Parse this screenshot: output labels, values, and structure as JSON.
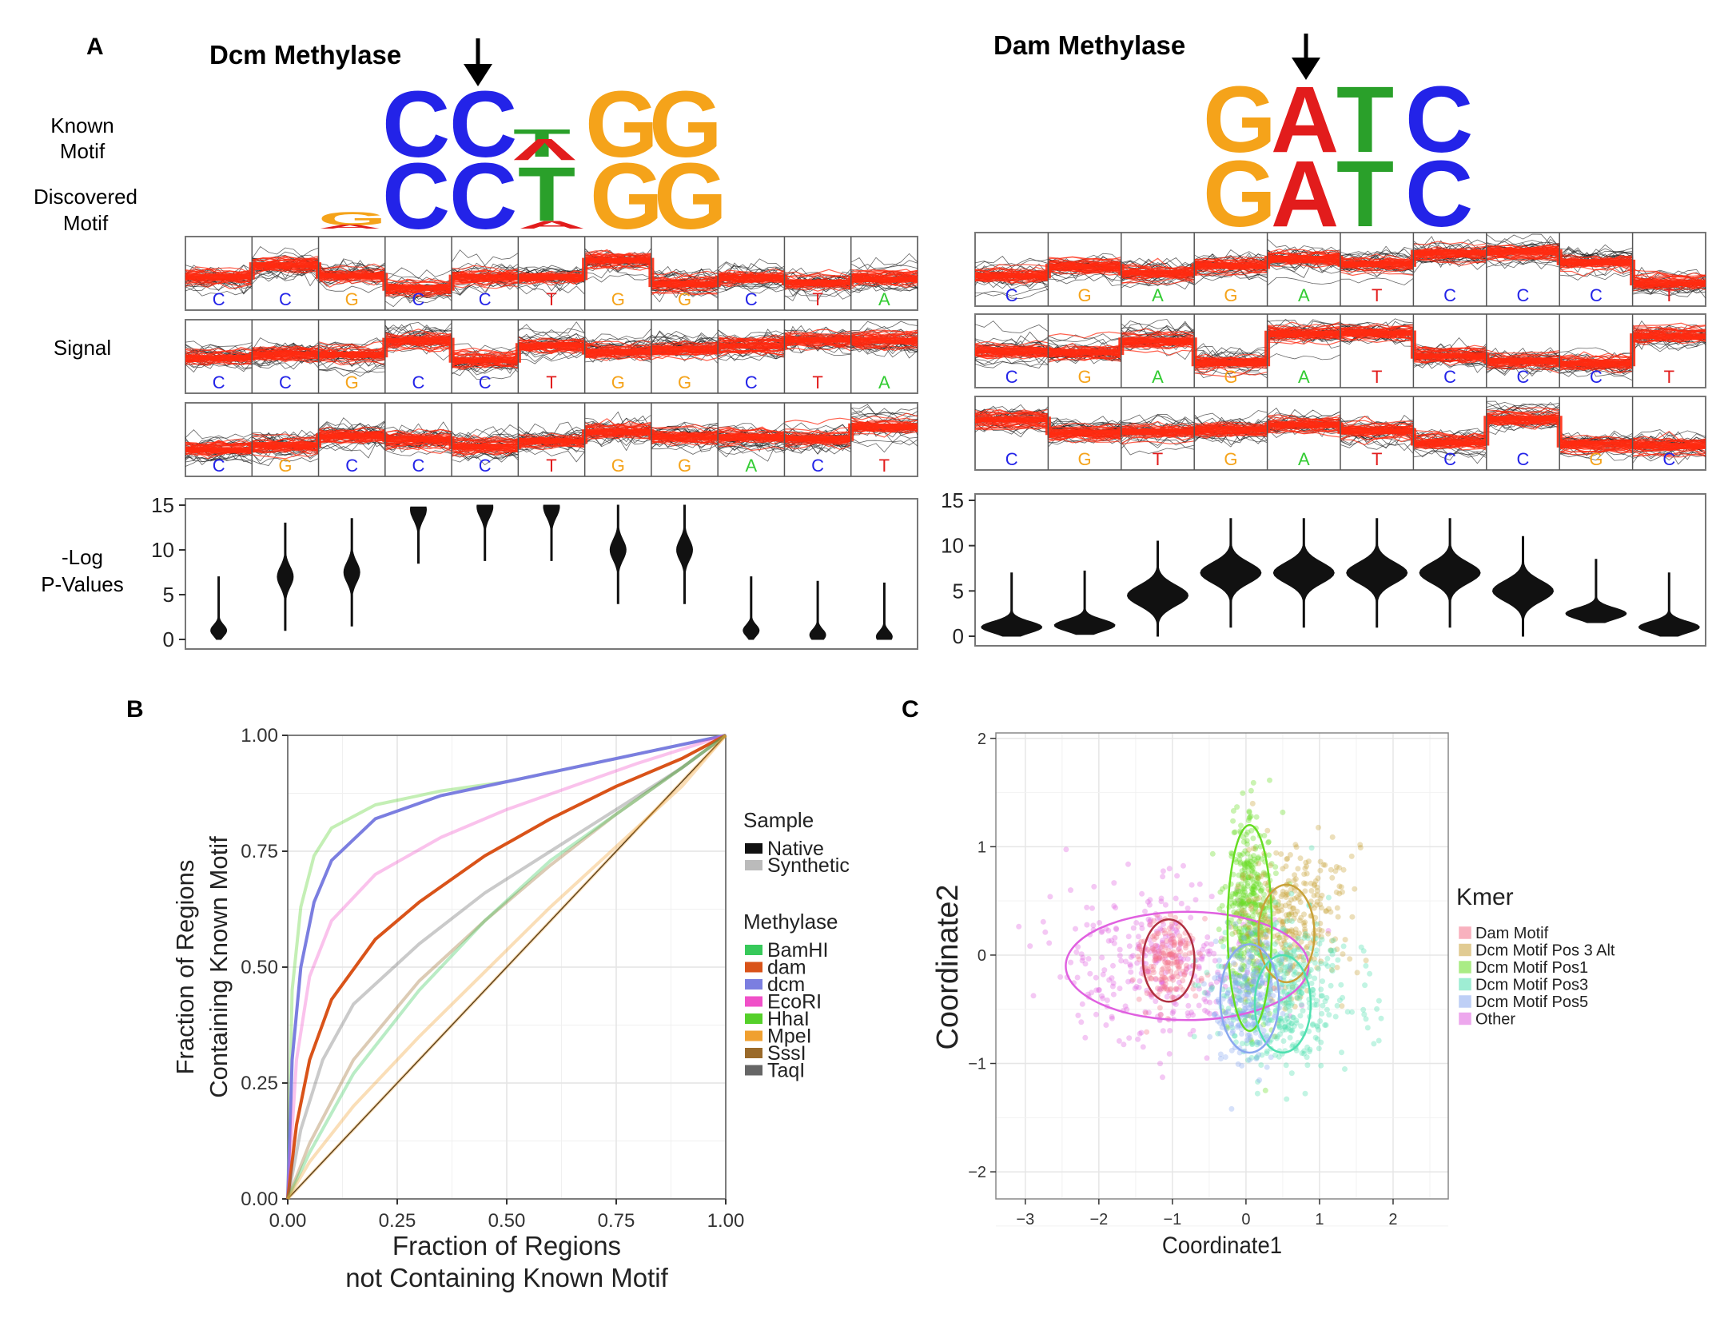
{
  "panel_a": {
    "panel_label": "A",
    "row_labels": {
      "known_motif": [
        "Known",
        "Motif"
      ],
      "discovered_motif": [
        "Discovered",
        "Motif"
      ],
      "signal": "Signal",
      "pvalues": [
        "-Log",
        "P-Values"
      ]
    },
    "dcm": {
      "title": "Dcm Methylase",
      "known_motif": [
        "C",
        "C",
        "A/T",
        "G",
        "G"
      ],
      "discovered_motif": [
        "G/A",
        "C",
        "C",
        "T/A",
        "G",
        "G"
      ],
      "signal_tracks": [
        [
          "C",
          "C",
          "G",
          "C",
          "C",
          "T",
          "G",
          "G",
          "C",
          "T",
          "A"
        ],
        [
          "C",
          "C",
          "G",
          "C",
          "C",
          "T",
          "G",
          "G",
          "C",
          "T",
          "A"
        ],
        [
          "C",
          "G",
          "C",
          "C",
          "C",
          "T",
          "G",
          "G",
          "A",
          "C",
          "T"
        ]
      ],
      "pvalue_axis": {
        "ticks": [
          "15",
          "10",
          "5",
          "0"
        ]
      },
      "violin_centers": [
        1,
        7,
        7.5,
        14.5,
        14.8,
        14.8,
        10,
        10,
        1,
        0.5,
        0.3
      ]
    },
    "dam": {
      "title": "Dam Methylase",
      "known_motif": [
        "G",
        "A",
        "T",
        "C"
      ],
      "discovered_motif": [
        "G",
        "A",
        "T",
        "C"
      ],
      "signal_tracks": [
        [
          "C",
          "G",
          "A",
          "G",
          "A",
          "T",
          "C",
          "C",
          "C",
          "T"
        ],
        [
          "C",
          "G",
          "A",
          "G",
          "A",
          "T",
          "C",
          "C",
          "C",
          "T"
        ],
        [
          "C",
          "G",
          "T",
          "G",
          "A",
          "T",
          "C",
          "C",
          "G",
          "C"
        ]
      ],
      "pvalue_axis": {
        "ticks": [
          "15",
          "10",
          "5",
          "0"
        ]
      },
      "violin_centers": [
        1,
        1.2,
        4.5,
        7,
        7,
        7,
        7,
        5,
        2.5,
        1
      ]
    }
  },
  "panel_b": {
    "panel_label": "B",
    "chart_data": {
      "type": "line",
      "xlabel": [
        "Fraction of Regions",
        "not Containing Known Motif"
      ],
      "ylabel": [
        "Fraction of Regions",
        "Containing Known Motif"
      ],
      "xlim": [
        0,
        1
      ],
      "ylim": [
        0,
        1
      ],
      "x_ticks": [
        "0.00",
        "0.25",
        "0.50",
        "0.75",
        "1.00"
      ],
      "y_ticks": [
        "0.00",
        "0.25",
        "0.50",
        "0.75",
        "1.00"
      ],
      "grid": true,
      "legend_sample_title": "Sample",
      "legend_sample": [
        {
          "label": "Native",
          "color": "#111111"
        },
        {
          "label": "Synthetic",
          "color": "#bbbbbb"
        }
      ],
      "legend_methylase_title": "Methylase",
      "legend_methylase": [
        {
          "label": "BamHI",
          "color": "#37c95a"
        },
        {
          "label": "dam",
          "color": "#d95319"
        },
        {
          "label": "dcm",
          "color": "#7b7ee0"
        },
        {
          "label": "EcoRI",
          "color": "#f050c8"
        },
        {
          "label": "HhaI",
          "color": "#55d02a"
        },
        {
          "label": "MpeI",
          "color": "#f0a030"
        },
        {
          "label": "SssI",
          "color": "#9a6a2a"
        },
        {
          "label": "TaqI",
          "color": "#666666"
        }
      ],
      "series": [
        {
          "methylase": "HhaI",
          "sample": "Synthetic",
          "x": [
            0,
            0.01,
            0.03,
            0.06,
            0.1,
            0.2,
            0.35,
            0.5,
            0.65,
            0.8,
            1
          ],
          "y": [
            0,
            0.45,
            0.63,
            0.74,
            0.8,
            0.85,
            0.88,
            0.9,
            0.93,
            0.96,
            1
          ]
        },
        {
          "methylase": "dcm",
          "sample": "Native",
          "x": [
            0,
            0.01,
            0.03,
            0.06,
            0.1,
            0.2,
            0.35,
            0.5,
            0.65,
            0.8,
            1
          ],
          "y": [
            0,
            0.3,
            0.5,
            0.64,
            0.73,
            0.82,
            0.87,
            0.9,
            0.93,
            0.96,
            1
          ]
        },
        {
          "methylase": "EcoRI",
          "sample": "Synthetic",
          "x": [
            0,
            0.02,
            0.05,
            0.1,
            0.2,
            0.35,
            0.5,
            0.65,
            0.8,
            1
          ],
          "y": [
            0,
            0.3,
            0.48,
            0.6,
            0.7,
            0.78,
            0.84,
            0.89,
            0.94,
            1
          ]
        },
        {
          "methylase": "dam",
          "sample": "Native",
          "x": [
            0,
            0.02,
            0.05,
            0.1,
            0.2,
            0.3,
            0.45,
            0.6,
            0.75,
            0.9,
            1
          ],
          "y": [
            0,
            0.16,
            0.3,
            0.43,
            0.56,
            0.64,
            0.74,
            0.82,
            0.89,
            0.95,
            1
          ]
        },
        {
          "methylase": "TaqI",
          "sample": "Synthetic",
          "x": [
            0,
            0.03,
            0.08,
            0.15,
            0.3,
            0.45,
            0.6,
            0.75,
            0.9,
            1
          ],
          "y": [
            0,
            0.15,
            0.3,
            0.42,
            0.55,
            0.66,
            0.75,
            0.84,
            0.93,
            1
          ]
        },
        {
          "methylase": "SssI",
          "sample": "Synthetic",
          "x": [
            0,
            0.05,
            0.15,
            0.3,
            0.45,
            0.6,
            0.75,
            0.9,
            1
          ],
          "y": [
            0,
            0.12,
            0.3,
            0.47,
            0.6,
            0.72,
            0.83,
            0.93,
            1
          ]
        },
        {
          "methylase": "BamHI",
          "sample": "Synthetic",
          "x": [
            0,
            0.05,
            0.15,
            0.3,
            0.45,
            0.6,
            0.75,
            0.9,
            1
          ],
          "y": [
            0,
            0.1,
            0.27,
            0.45,
            0.6,
            0.73,
            0.83,
            0.93,
            1
          ]
        },
        {
          "methylase": "MpeI",
          "sample": "Synthetic",
          "x": [
            0,
            0.05,
            0.15,
            0.3,
            0.45,
            0.6,
            0.75,
            0.9,
            1
          ],
          "y": [
            0,
            0.08,
            0.2,
            0.35,
            0.49,
            0.63,
            0.76,
            0.89,
            1
          ]
        },
        {
          "methylase": "MpeI",
          "sample": "Synthetic",
          "x": [
            0,
            0.1,
            0.25,
            0.4,
            0.55,
            0.7,
            0.85,
            1
          ],
          "y": [
            0,
            0.1,
            0.25,
            0.4,
            0.55,
            0.7,
            0.85,
            1
          ]
        }
      ]
    }
  },
  "panel_c": {
    "panel_label": "C",
    "chart_data": {
      "type": "scatter",
      "xlabel": "Coordinate1",
      "ylabel": "Coordinate2",
      "xlim": [
        -3.4,
        2.75
      ],
      "ylim": [
        -2.25,
        2.05
      ],
      "x_ticks": [
        -3,
        -2,
        -1,
        0,
        1,
        2
      ],
      "y_ticks": [
        2,
        1,
        0,
        -1,
        -2
      ],
      "x_tick_labels": [
        "−3",
        "−2",
        "−1",
        "0",
        "1",
        "2"
      ],
      "y_tick_labels": [
        "2",
        "1",
        "0",
        "−1",
        "−2"
      ],
      "grid": true,
      "legend_title": "Kmer",
      "legend": [
        {
          "label": "Dam Motif",
          "color": "#f4728a"
        },
        {
          "label": "Dcm Motif Pos 3 Alt",
          "color": "#c9a23a"
        },
        {
          "label": "Dcm Motif Pos1",
          "color": "#66dd22"
        },
        {
          "label": "Dcm Motif Pos3",
          "color": "#4fe0b0"
        },
        {
          "label": "Dcm Motif Pos5",
          "color": "#8aa8f0"
        },
        {
          "label": "Other",
          "color": "#e060e0"
        }
      ],
      "clusters": [
        {
          "kmer": "Other",
          "center": [
            -1.2,
            -0.1
          ],
          "spread": [
            0.7,
            0.35
          ],
          "n": 320
        },
        {
          "kmer": "Dam Motif",
          "center": [
            -1.05,
            -0.05
          ],
          "spread": [
            0.2,
            0.2
          ],
          "n": 180
        },
        {
          "kmer": "Dcm Motif Pos1",
          "center": [
            0.05,
            0.4
          ],
          "spread": [
            0.16,
            0.45
          ],
          "n": 420
        },
        {
          "kmer": "Dcm Motif Pos 3 Alt",
          "center": [
            0.6,
            0.3
          ],
          "spread": [
            0.38,
            0.35
          ],
          "n": 320
        },
        {
          "kmer": "Dcm Motif Pos3",
          "center": [
            0.5,
            -0.35
          ],
          "spread": [
            0.45,
            0.35
          ],
          "n": 420
        },
        {
          "kmer": "Dcm Motif Pos5",
          "center": [
            0.05,
            -0.4
          ],
          "spread": [
            0.22,
            0.3
          ],
          "n": 260
        }
      ],
      "ellipses": [
        {
          "kmer": "Other",
          "center": [
            -0.8,
            -0.1
          ],
          "radii": [
            1.65,
            0.5
          ]
        },
        {
          "kmer": "Dam Motif",
          "center": [
            -1.05,
            -0.05
          ],
          "radii": [
            0.35,
            0.38
          ]
        },
        {
          "kmer": "Dcm Motif Pos1",
          "center": [
            0.05,
            0.25
          ],
          "radii": [
            0.3,
            0.95
          ]
        },
        {
          "kmer": "Dcm Motif Pos 3 Alt",
          "center": [
            0.55,
            0.2
          ],
          "radii": [
            0.38,
            0.45
          ]
        },
        {
          "kmer": "Dcm Motif Pos3",
          "center": [
            0.5,
            -0.45
          ],
          "radii": [
            0.38,
            0.45
          ]
        },
        {
          "kmer": "Dcm Motif Pos5",
          "center": [
            0.05,
            -0.4
          ],
          "radii": [
            0.4,
            0.5
          ]
        }
      ]
    }
  }
}
